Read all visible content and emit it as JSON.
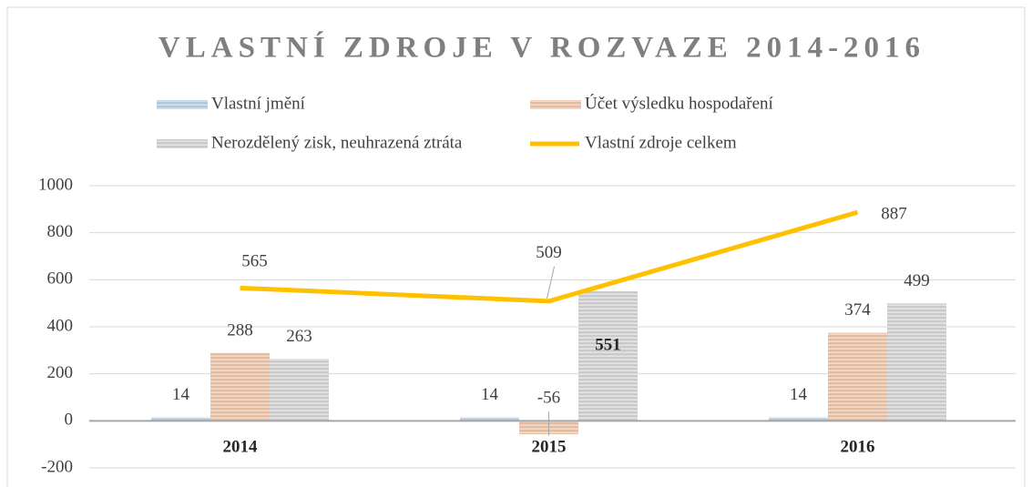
{
  "chart_data": {
    "type": "bar+line",
    "title": "VLASTNÍ ZDROJE V ROZVAZE 2014-2016",
    "categories": [
      "2014",
      "2015",
      "2016"
    ],
    "series": [
      {
        "name": "Vlastní jmění",
        "color": "#5b9bd5",
        "type": "bar",
        "values": [
          14,
          14,
          14
        ]
      },
      {
        "name": "Účet výsledku hospodaření",
        "color": "#ed7d31",
        "type": "bar",
        "values": [
          288,
          -56,
          374
        ]
      },
      {
        "name": "Nerozdělený zisk, neuhrazená ztráta",
        "color": "#a5a5a5",
        "type": "bar",
        "values": [
          263,
          551,
          499
        ]
      },
      {
        "name": "Vlastní zdroje celkem",
        "color": "#ffc000",
        "type": "line",
        "values": [
          565,
          509,
          887
        ]
      }
    ],
    "ylim": [
      -200,
      1000
    ],
    "yticks": [
      -200,
      0,
      200,
      400,
      600,
      800,
      1000
    ],
    "grid": true,
    "legend": "top"
  }
}
